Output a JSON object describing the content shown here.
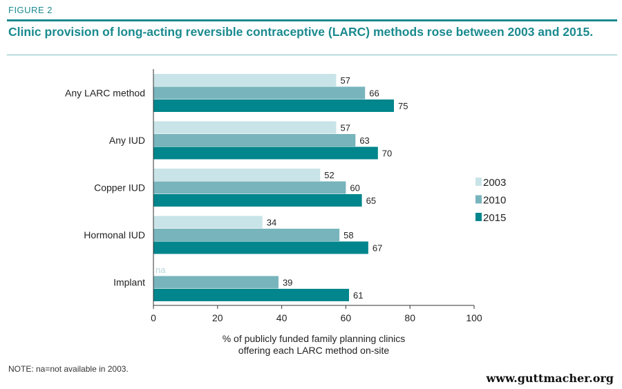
{
  "figure_label": "FIGURE 2",
  "title": "Clinic provision of long-acting reversible contraceptive (LARC) methods rose between 2003 and 2015.",
  "note": "NOTE: na=not available in 2003.",
  "website": "www.guttmacher.org",
  "colors": {
    "accent": "#1a8a8f",
    "s2003": "#c9e4e8",
    "s2010": "#78b4bc",
    "s2015": "#00868c"
  },
  "chart_data": {
    "type": "bar",
    "orientation": "horizontal",
    "categories": [
      "Any LARC method",
      "Any IUD",
      "Copper IUD",
      "Hormonal IUD",
      "Implant"
    ],
    "series": [
      {
        "name": "2003",
        "values": [
          57,
          57,
          52,
          34,
          null
        ],
        "labels": [
          "57",
          "57",
          "52",
          "34",
          "na"
        ]
      },
      {
        "name": "2010",
        "values": [
          66,
          63,
          60,
          58,
          39
        ],
        "labels": [
          "66",
          "63",
          "60",
          "58",
          "39"
        ]
      },
      {
        "name": "2015",
        "values": [
          75,
          70,
          65,
          67,
          61
        ],
        "labels": [
          "75",
          "70",
          "65",
          "67",
          "61"
        ]
      }
    ],
    "xlim": [
      0,
      100
    ],
    "xticks": [
      "0",
      "20",
      "40",
      "60",
      "80",
      "100"
    ],
    "xlabel_line1": "% of publicly funded family planning clinics",
    "xlabel_line2": "offering each LARC method on-site",
    "legend_position": "right",
    "grid": false
  }
}
